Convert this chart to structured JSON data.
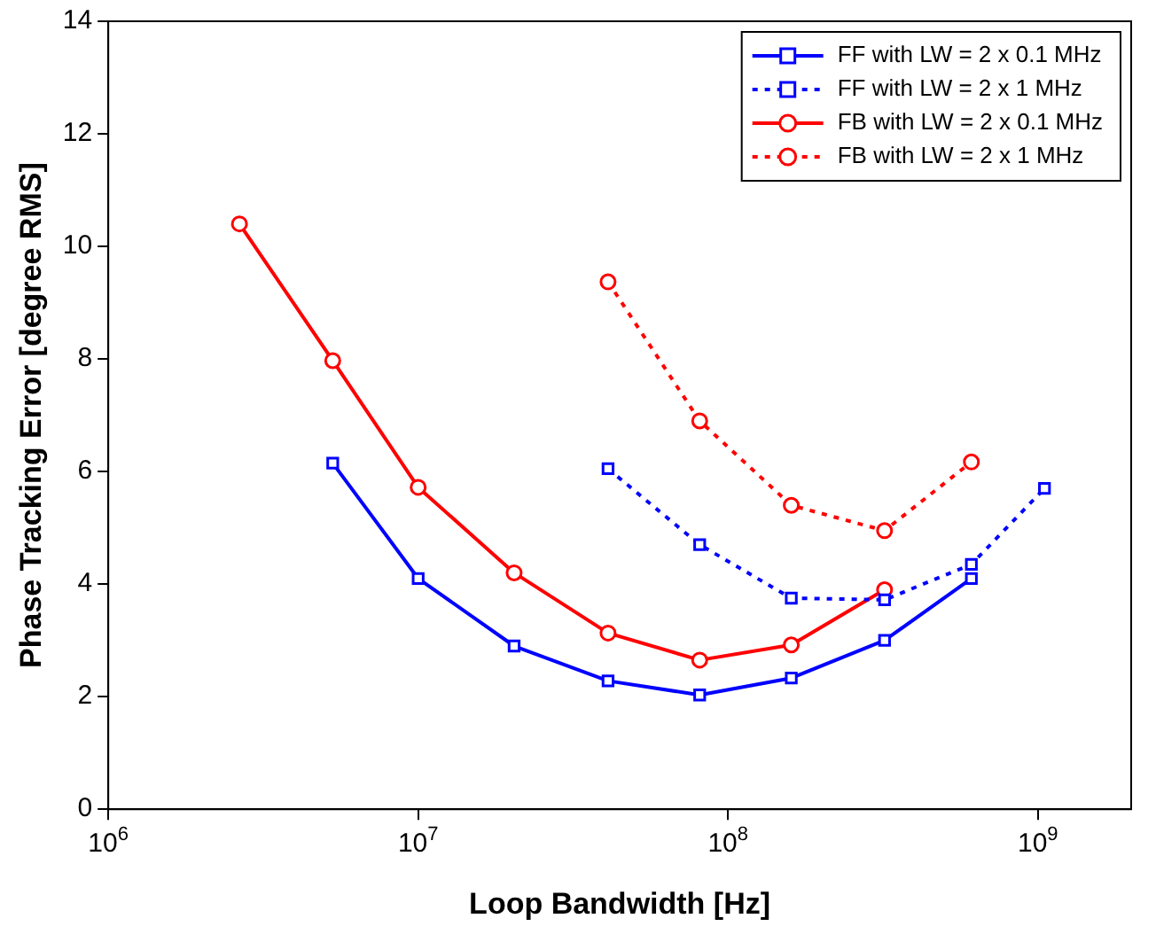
{
  "chart_data": {
    "type": "line",
    "xlabel": "Loop Bandwidth [Hz]",
    "ylabel": "Phase Tracking Error [degree RMS]",
    "log": "x",
    "xlim": [
      1000000,
      2000000000
    ],
    "xticks": [
      {
        "value": 1000000,
        "label": "10$^{6}$"
      },
      {
        "value": 10000000,
        "label": "10$^{7}$"
      },
      {
        "value": 100000000,
        "label": "10$^{8}$"
      },
      {
        "value": 1000000000,
        "label": "10$^{9}$"
      }
    ],
    "ylim": [
      0,
      14
    ],
    "yticks": [
      0,
      2,
      4,
      6,
      8,
      10,
      12,
      14
    ],
    "grid": false,
    "legend": "top right",
    "series": [
      {
        "name": "FF with LW = 2 x 0.1 MHz",
        "color": "#0000ff",
        "marker": "square",
        "line_style": "solid",
        "x": [
          5300000,
          10000000,
          20400000,
          41000000,
          81000000,
          160000000,
          320000000,
          610000000
        ],
        "values": [
          6.15,
          4.1,
          2.9,
          2.28,
          2.03,
          2.33,
          3.0,
          4.1
        ]
      },
      {
        "name": "FF with LW = 2 x 1 MHz",
        "color": "#0000ff",
        "marker": "square",
        "line_style": "dotted",
        "x": [
          41000000,
          81000000,
          160000000,
          320000000,
          610000000,
          1050000000
        ],
        "values": [
          6.05,
          4.7,
          3.75,
          3.72,
          4.35,
          5.7
        ]
      },
      {
        "name": "FB with LW = 2 x 0.1 MHz",
        "color": "#ff0000",
        "marker": "circle",
        "line_style": "solid",
        "x": [
          2650000,
          5300000,
          10000000,
          20400000,
          41000000,
          81000000,
          160000000,
          320000000
        ],
        "values": [
          10.4,
          7.97,
          5.72,
          4.2,
          3.13,
          2.65,
          2.92,
          3.9
        ]
      },
      {
        "name": "FB with LW = 2 x 1 MHz",
        "color": "#ff0000",
        "marker": "circle",
        "line_style": "dotted",
        "x": [
          41000000,
          81000000,
          160000000,
          320000000,
          610000000
        ],
        "values": [
          9.37,
          6.9,
          5.4,
          4.95,
          6.17
        ]
      }
    ]
  }
}
